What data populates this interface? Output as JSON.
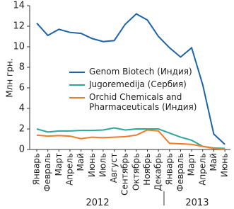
{
  "chart_data": {
    "type": "line",
    "y_label": "Млн грн.",
    "categories": [
      "Январь",
      "Февраль",
      "Март",
      "Апрель",
      "Май",
      "Июнь",
      "Июль",
      "Август",
      "Сентябрь",
      "Октябрь",
      "Ноябрь",
      "Декабрь",
      "Январь",
      "Февраль",
      "Март",
      "Апрель",
      "Май",
      "Июнь"
    ],
    "x_groups": [
      "2012",
      "2013"
    ],
    "series": [
      {
        "name": "Genom Biotech (Индия)",
        "color": "#1d63a8",
        "values": [
          12.3,
          11.1,
          11.7,
          11.4,
          11.3,
          10.8,
          10.5,
          10.6,
          12.2,
          13.2,
          12.6,
          11.0,
          9.9,
          9.0,
          9.9,
          6.3,
          1.5,
          0.5
        ]
      },
      {
        "name": "Jugoremedija (Сербия)",
        "color": "#2aa89a",
        "values": [
          2.0,
          1.7,
          1.8,
          1.8,
          1.85,
          1.85,
          1.9,
          2.1,
          1.9,
          2.0,
          2.0,
          2.0,
          1.6,
          1.2,
          0.9,
          0.3,
          0.15,
          0.1
        ]
      },
      {
        "name": "Orchid Chemicals and Pharmaceuticals (Индия)",
        "color": "#f07c2a",
        "values": [
          1.4,
          1.3,
          1.35,
          1.3,
          1.05,
          1.2,
          1.15,
          1.2,
          1.25,
          1.4,
          1.9,
          1.8,
          0.6,
          0.55,
          0.5,
          0.3,
          0.1,
          0.05
        ]
      }
    ],
    "ylim": [
      0,
      14
    ],
    "yticks": [
      0,
      2,
      4,
      6,
      8,
      10,
      12,
      14
    ],
    "grid": false
  }
}
